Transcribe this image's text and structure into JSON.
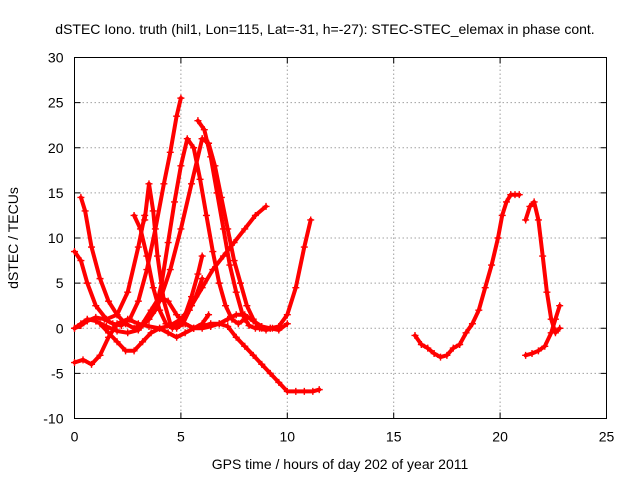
{
  "chart_data": {
    "type": "scatter",
    "title": "dSTEC Iono. truth (hil1, Lon=115, Lat=-31, h=-27): STEC-STEC_elemax in phase cont.",
    "xlabel": "GPS time / hours of day 202 of year 2011",
    "ylabel": "dSTEC  / TECUs",
    "xlim": [
      0,
      25
    ],
    "ylim": [
      -10,
      30
    ],
    "xticks": [
      0,
      5,
      10,
      15,
      20,
      25
    ],
    "yticks": [
      -10,
      -5,
      0,
      5,
      10,
      15,
      20,
      25,
      30
    ],
    "grid": true,
    "marker": "plus",
    "color": "#ff0000",
    "series": [
      {
        "x": [
          0.0,
          0.3,
          0.6,
          1.0,
          1.4,
          1.8,
          2.2,
          2.6,
          3.0,
          3.4,
          3.8,
          4.2,
          4.5,
          4.8,
          5.0
        ],
        "y": [
          0.0,
          0.3,
          0.8,
          1.2,
          1.0,
          0.5,
          0.3,
          1.0,
          3.0,
          6.5,
          11.0,
          16.0,
          19.5,
          23.5,
          25.5
        ]
      },
      {
        "x": [
          0.0,
          0.3,
          0.6,
          1.0,
          1.5,
          2.0,
          2.5,
          3.0,
          3.5,
          4.0,
          4.5,
          5.0,
          5.5,
          6.0
        ],
        "y": [
          0.0,
          0.5,
          1.0,
          0.8,
          0.2,
          -0.3,
          -0.5,
          -0.2,
          1.0,
          3.0,
          6.5,
          11.0,
          16.0,
          21.0
        ]
      },
      {
        "x": [
          0.0,
          0.3,
          0.6,
          1.0,
          1.5,
          2.0,
          2.5,
          3.0,
          3.3
        ],
        "y": [
          8.5,
          7.5,
          5.0,
          2.5,
          1.0,
          1.5,
          4.0,
          9.0,
          12.5
        ]
      },
      {
        "x": [
          0.3,
          0.5,
          0.8,
          1.2,
          1.6,
          2.0,
          2.4,
          2.8,
          3.2,
          3.6,
          4.0,
          4.4,
          4.8,
          5.2,
          5.6,
          6.0,
          6.3
        ],
        "y": [
          14.5,
          13.0,
          9.0,
          5.5,
          3.0,
          1.5,
          0.5,
          0.0,
          0.5,
          2.0,
          3.5,
          3.0,
          1.5,
          0.5,
          0.0,
          0.5,
          1.5
        ]
      },
      {
        "x": [
          0.0,
          0.4,
          0.8,
          1.2,
          1.6,
          2.0,
          2.5,
          3.0,
          3.5,
          4.0,
          4.5,
          5.0,
          5.5,
          6.0,
          6.5,
          7.0,
          7.5,
          8.0,
          8.5,
          9.0
        ],
        "y": [
          -3.8,
          -3.5,
          -4.0,
          -3.0,
          -1.0,
          0.5,
          1.0,
          0.5,
          0.2,
          0.0,
          0.3,
          1.0,
          2.5,
          4.5,
          6.5,
          8.0,
          9.5,
          11.0,
          12.5,
          13.5
        ]
      },
      {
        "x": [
          1.2,
          1.6,
          2.0,
          2.4,
          2.8,
          3.2,
          3.6,
          4.0,
          4.4,
          4.8,
          5.2,
          5.6,
          6.0,
          6.4,
          6.8,
          7.2,
          7.6,
          8.0,
          8.4,
          8.8,
          9.2,
          9.6,
          10.0,
          10.4,
          10.8,
          11.2,
          11.5
        ],
        "y": [
          0.5,
          -0.5,
          -1.5,
          -2.5,
          -2.5,
          -1.5,
          -0.5,
          0.0,
          -0.5,
          -1.0,
          -0.5,
          0.0,
          0.2,
          0.5,
          0.5,
          0.2,
          -1.0,
          -2.0,
          -3.0,
          -4.0,
          -5.0,
          -6.0,
          -7.0,
          -7.0,
          -7.0,
          -7.0,
          -6.8
        ]
      },
      {
        "x": [
          2.8,
          3.1,
          3.4,
          3.7,
          4.0,
          4.3,
          4.6,
          4.9,
          5.2,
          5.5,
          5.8,
          6.0
        ],
        "y": [
          12.5,
          11.0,
          8.0,
          4.5,
          2.0,
          0.5,
          0.0,
          0.3,
          1.5,
          3.5,
          6.0,
          8.0
        ]
      },
      {
        "x": [
          3.3,
          3.5,
          3.7,
          3.9,
          4.2,
          4.5,
          4.8,
          5.1,
          5.4,
          5.7,
          6.0
        ],
        "y": [
          12.0,
          16.0,
          13.0,
          8.0,
          3.0,
          0.5,
          0.0,
          0.5,
          2.0,
          3.5,
          5.5
        ]
      },
      {
        "x": [
          3.5,
          3.8,
          4.1,
          4.4,
          4.7,
          5.0,
          5.3,
          5.6,
          5.9,
          6.2,
          6.5,
          6.8,
          7.1,
          7.4,
          7.7,
          8.0
        ],
        "y": [
          1.0,
          2.0,
          5.0,
          9.5,
          14.0,
          18.0,
          21.0,
          20.0,
          16.5,
          12.5,
          8.5,
          5.0,
          2.5,
          1.0,
          0.5,
          1.0
        ]
      },
      {
        "x": [
          5.8,
          6.1,
          6.4,
          6.7,
          7.0,
          7.3,
          7.6,
          7.9,
          8.2,
          8.5,
          8.8,
          9.2,
          9.6,
          10.0
        ],
        "y": [
          23.0,
          22.0,
          19.0,
          15.0,
          11.0,
          7.0,
          4.0,
          1.5,
          0.3,
          0.0,
          0.0,
          0.0,
          -0.2,
          0.5
        ]
      },
      {
        "x": [
          6.0,
          6.3,
          6.6,
          6.9,
          7.2,
          7.5,
          7.8,
          8.1,
          8.4,
          8.7,
          9.0,
          9.3,
          9.6
        ],
        "y": [
          21.0,
          20.5,
          18.0,
          14.5,
          11.0,
          7.5,
          5.0,
          2.5,
          1.0,
          0.0,
          -0.2,
          0.0,
          0.0
        ]
      },
      {
        "x": [
          4.8,
          5.2,
          5.6,
          6.0,
          6.4,
          6.8,
          7.2,
          7.6,
          8.0,
          8.4,
          8.8,
          9.2,
          9.6,
          10.0,
          10.4,
          10.8,
          11.1
        ],
        "y": [
          0.5,
          0.5,
          0.0,
          0.0,
          0.2,
          0.5,
          1.0,
          1.5,
          1.5,
          0.8,
          0.2,
          0.0,
          0.2,
          1.5,
          4.5,
          9.0,
          12.0
        ]
      },
      {
        "x": [
          16.0,
          16.3,
          16.6,
          16.9,
          17.2,
          17.5,
          17.8,
          18.1,
          18.4,
          18.7,
          19.0,
          19.3,
          19.6,
          19.9,
          20.1,
          20.3,
          20.5,
          20.7,
          20.9
        ],
        "y": [
          -0.8,
          -1.8,
          -2.2,
          -2.8,
          -3.2,
          -3.0,
          -2.2,
          -1.8,
          -0.5,
          0.5,
          2.0,
          4.5,
          7.0,
          10.0,
          12.5,
          14.0,
          14.8,
          14.8,
          14.8
        ]
      },
      {
        "x": [
          21.2,
          21.4,
          21.6,
          21.8,
          22.0,
          22.2,
          22.4,
          22.6,
          22.8
        ],
        "y": [
          12.0,
          13.5,
          14.0,
          12.0,
          8.0,
          4.0,
          1.0,
          -0.5,
          0.0
        ]
      },
      {
        "x": [
          21.2,
          21.5,
          21.8,
          22.1,
          22.4,
          22.6,
          22.8
        ],
        "y": [
          -3.0,
          -2.8,
          -2.5,
          -2.0,
          -0.5,
          1.0,
          2.5
        ]
      }
    ]
  }
}
